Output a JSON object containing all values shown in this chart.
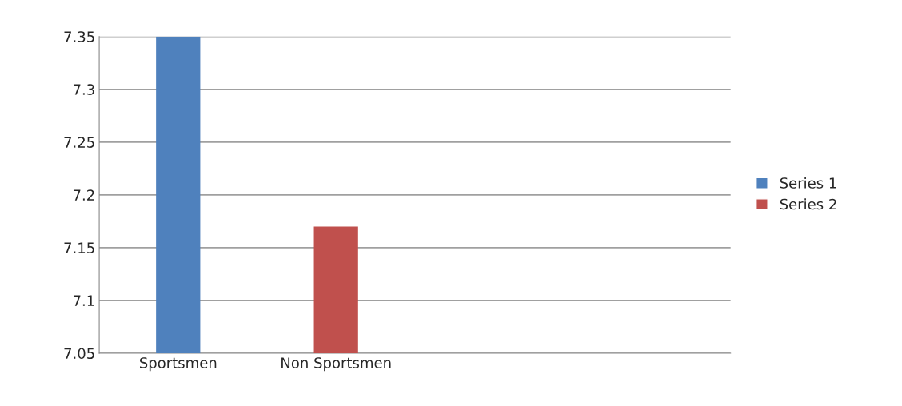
{
  "chart_data": {
    "type": "bar",
    "categories": [
      "Sportsmen",
      "Non Sportsmen",
      null,
      null
    ],
    "series": [
      {
        "name": "Series 1",
        "color": "#4f81bd",
        "values": [
          7.35,
          null,
          null,
          null
        ]
      },
      {
        "name": "Series 2",
        "color": "#c0504d",
        "values": [
          null,
          7.17,
          null,
          null
        ]
      }
    ],
    "ylim": [
      7.05,
      7.35
    ],
    "yticks": [
      7.05,
      7.1,
      7.15,
      7.2,
      7.25,
      7.3,
      7.35
    ],
    "grid": "y",
    "legend": "right"
  }
}
